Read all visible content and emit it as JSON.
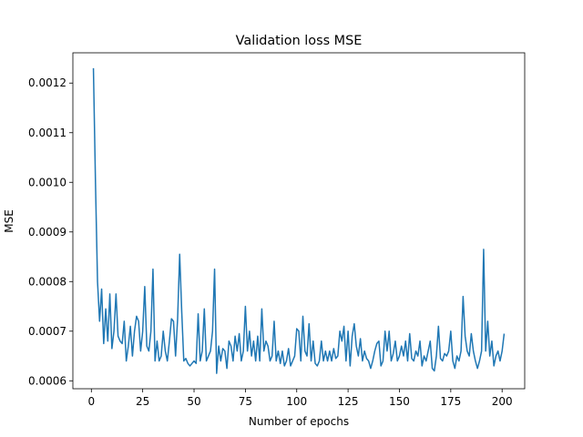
{
  "chart_data": {
    "type": "line",
    "title": "Validation loss MSE",
    "xlabel": "Number of epochs",
    "ylabel": "MSE",
    "color": "#1f77b4",
    "x": [
      1,
      2,
      3,
      4,
      5,
      6,
      7,
      8,
      9,
      10,
      11,
      12,
      13,
      14,
      15,
      16,
      17,
      18,
      19,
      20,
      21,
      22,
      23,
      24,
      25,
      26,
      27,
      28,
      29,
      30,
      31,
      32,
      33,
      34,
      35,
      36,
      37,
      38,
      39,
      40,
      41,
      42,
      43,
      44,
      45,
      46,
      47,
      48,
      49,
      50,
      51,
      52,
      53,
      54,
      55,
      56,
      57,
      58,
      59,
      60,
      61,
      62,
      63,
      64,
      65,
      66,
      67,
      68,
      69,
      70,
      71,
      72,
      73,
      74,
      75,
      76,
      77,
      78,
      79,
      80,
      81,
      82,
      83,
      84,
      85,
      86,
      87,
      88,
      89,
      90,
      91,
      92,
      93,
      94,
      95,
      96,
      97,
      98,
      99,
      100,
      101,
      102,
      103,
      104,
      105,
      106,
      107,
      108,
      109,
      110,
      111,
      112,
      113,
      114,
      115,
      116,
      117,
      118,
      119,
      120,
      121,
      122,
      123,
      124,
      125,
      126,
      127,
      128,
      129,
      130,
      131,
      132,
      133,
      134,
      135,
      136,
      137,
      138,
      139,
      140,
      141,
      142,
      143,
      144,
      145,
      146,
      147,
      148,
      149,
      150,
      151,
      152,
      153,
      154,
      155,
      156,
      157,
      158,
      159,
      160,
      161,
      162,
      163,
      164,
      165,
      166,
      167,
      168,
      169,
      170,
      171,
      172,
      173,
      174,
      175,
      176,
      177,
      178,
      179,
      180,
      181,
      182,
      183,
      184,
      185,
      186,
      187,
      188,
      189,
      190,
      191,
      192,
      193,
      194,
      195,
      196,
      197,
      198,
      199,
      200,
      201
    ],
    "values": [
      0.00123,
      0.001,
      0.0008,
      0.00072,
      0.000785,
      0.000675,
      0.000745,
      0.00068,
      0.000775,
      0.000665,
      0.0007,
      0.000775,
      0.00069,
      0.00068,
      0.000675,
      0.00072,
      0.00064,
      0.00067,
      0.00071,
      0.00065,
      0.0007,
      0.00073,
      0.00072,
      0.00066,
      0.0007,
      0.00079,
      0.00067,
      0.00066,
      0.0007,
      0.000825,
      0.00064,
      0.00068,
      0.00064,
      0.00065,
      0.0007,
      0.00066,
      0.00064,
      0.00068,
      0.000725,
      0.00072,
      0.00065,
      0.000725,
      0.000855,
      0.00074,
      0.00064,
      0.000645,
      0.000635,
      0.00063,
      0.000635,
      0.00064,
      0.000635,
      0.000735,
      0.00064,
      0.00066,
      0.000745,
      0.00064,
      0.00065,
      0.00066,
      0.0007,
      0.000825,
      0.000615,
      0.00067,
      0.00064,
      0.000665,
      0.00066,
      0.000625,
      0.00068,
      0.00067,
      0.00064,
      0.00069,
      0.00066,
      0.000695,
      0.00064,
      0.00066,
      0.00075,
      0.00066,
      0.0007,
      0.00065,
      0.00068,
      0.00064,
      0.00069,
      0.00064,
      0.000745,
      0.00066,
      0.00068,
      0.00067,
      0.00064,
      0.00065,
      0.00072,
      0.00064,
      0.00066,
      0.000635,
      0.00066,
      0.00063,
      0.00064,
      0.000665,
      0.00063,
      0.00064,
      0.00065,
      0.000705,
      0.0007,
      0.00064,
      0.00073,
      0.00066,
      0.00065,
      0.000715,
      0.00064,
      0.00068,
      0.000635,
      0.00063,
      0.00064,
      0.00068,
      0.00064,
      0.00066,
      0.00064,
      0.00066,
      0.00064,
      0.000665,
      0.000645,
      0.00065,
      0.0007,
      0.00068,
      0.00071,
      0.00064,
      0.0007,
      0.00063,
      0.00069,
      0.000715,
      0.00067,
      0.00065,
      0.000685,
      0.00064,
      0.00066,
      0.000645,
      0.00064,
      0.000625,
      0.00064,
      0.00066,
      0.000675,
      0.00068,
      0.00063,
      0.00064,
      0.0007,
      0.00066,
      0.0007,
      0.00064,
      0.000655,
      0.00068,
      0.00064,
      0.00065,
      0.00067,
      0.00065,
      0.00068,
      0.00064,
      0.000695,
      0.000645,
      0.00064,
      0.00066,
      0.00065,
      0.00068,
      0.00063,
      0.00065,
      0.00064,
      0.00066,
      0.00068,
      0.000625,
      0.00062,
      0.00065,
      0.00071,
      0.000645,
      0.00064,
      0.000655,
      0.00065,
      0.00066,
      0.0007,
      0.00064,
      0.000625,
      0.00065,
      0.00064,
      0.00066,
      0.00077,
      0.00069,
      0.00066,
      0.00065,
      0.000695,
      0.00066,
      0.00064,
      0.000625,
      0.00064,
      0.00066,
      0.000865,
      0.00066,
      0.00072,
      0.00065,
      0.00068,
      0.00063,
      0.00065,
      0.00066,
      0.00064,
      0.00066,
      0.000695
    ],
    "xlim": [
      -9,
      211
    ],
    "xticks": [
      0,
      25,
      50,
      75,
      100,
      125,
      150,
      175,
      200
    ],
    "ylim": [
      0.000584,
      0.001261
    ],
    "yticks": [
      0.0006,
      0.0007,
      0.0008,
      0.0009,
      {
        "value": 0.001,
        "label": "0.0010"
      },
      0.0011,
      0.0012
    ]
  }
}
